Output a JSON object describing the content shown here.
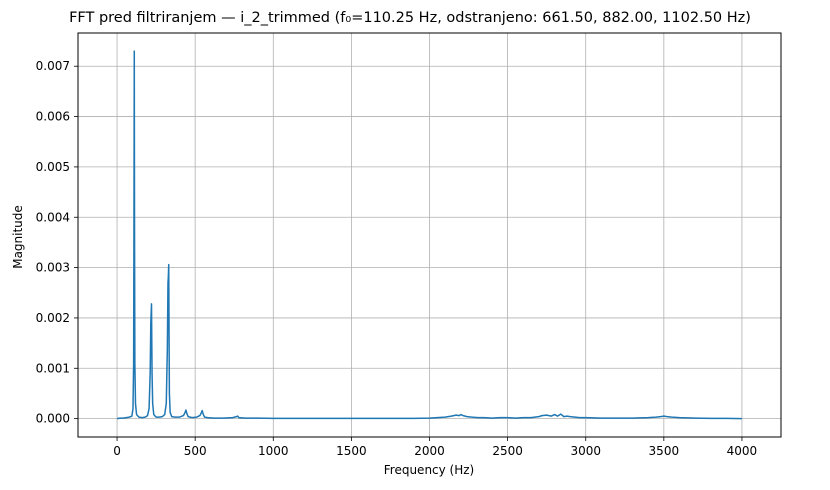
{
  "chart_data": {
    "type": "line",
    "title": "FFT pred filtriranjem — i_2_trimmed (f₀=110.25 Hz, odstranjeno: 661.50, 882.00, 1102.50 Hz)",
    "xlabel": "Frequency (Hz)",
    "ylabel": "Magnitude",
    "xlim": [
      -250,
      4250
    ],
    "ylim": [
      -0.000365,
      0.00766
    ],
    "xticks": [
      0,
      500,
      1000,
      1500,
      2000,
      2500,
      3000,
      3500,
      4000
    ],
    "xtick_labels": [
      "0",
      "500",
      "1000",
      "1500",
      "2000",
      "2500",
      "3000",
      "3500",
      "4000"
    ],
    "yticks": [
      0.0,
      0.001,
      0.002,
      0.003,
      0.004,
      0.005,
      0.006,
      0.007
    ],
    "ytick_labels": [
      "0.000",
      "0.001",
      "0.002",
      "0.003",
      "0.004",
      "0.005",
      "0.006",
      "0.007"
    ],
    "grid": true,
    "series": [
      {
        "color": "#1f77b4",
        "x": [
          0,
          20,
          40,
          60,
          80,
          95,
          102,
          106,
          108,
          110.25,
          112,
          114,
          118,
          125,
          140,
          160,
          180,
          195,
          205,
          212,
          216,
          220.5,
          224,
          228,
          235,
          250,
          270,
          290,
          305,
          315,
          322,
          326,
          328,
          330.75,
          333,
          335,
          340,
          350,
          370,
          400,
          425,
          435,
          441,
          447,
          455,
          480,
          510,
          530,
          540,
          545,
          551,
          560,
          580,
          620,
          680,
          740,
          765,
          772,
          780,
          820,
          900,
          1000,
          1100,
          1200,
          1300,
          1400,
          1500,
          1600,
          1700,
          1800,
          1900,
          2000,
          2050,
          2100,
          2140,
          2170,
          2190,
          2200,
          2215,
          2240,
          2270,
          2310,
          2350,
          2400,
          2450,
          2500,
          2550,
          2600,
          2650,
          2700,
          2720,
          2750,
          2780,
          2800,
          2820,
          2840,
          2860,
          2880,
          2900,
          2930,
          2960,
          3000,
          3100,
          3200,
          3300,
          3400,
          3450,
          3480,
          3500,
          3520,
          3550,
          3600,
          3700,
          3800,
          3900,
          4000
        ],
        "y": [
          0.0,
          1e-05,
          1e-05,
          2e-05,
          3e-05,
          5e-05,
          0.0002,
          0.0011,
          0.0036,
          0.0073,
          0.0036,
          0.0011,
          0.0003,
          8e-05,
          3e-05,
          2e-05,
          3e-05,
          6e-05,
          0.0002,
          0.0009,
          0.0019,
          0.00228,
          0.0009,
          0.0003,
          8e-05,
          3e-05,
          3e-05,
          4e-05,
          8e-05,
          0.0003,
          0.0014,
          0.0027,
          0.0028,
          0.00306,
          0.0016,
          0.0005,
          0.00012,
          4e-05,
          3e-05,
          3e-05,
          6e-05,
          0.00012,
          0.00017,
          0.0001,
          4e-05,
          2e-05,
          3e-05,
          6e-05,
          0.00012,
          0.00016,
          9e-05,
          3e-05,
          2e-05,
          1e-05,
          1e-05,
          2e-05,
          4e-05,
          5e-05,
          2e-05,
          1e-05,
          1e-05,
          5e-06,
          5e-06,
          5e-06,
          5e-06,
          5e-06,
          5e-06,
          5e-06,
          5e-06,
          5e-06,
          5e-06,
          1e-05,
          2e-05,
          3e-05,
          5e-05,
          7e-05,
          6e-05,
          8e-05,
          6e-05,
          4e-05,
          3e-05,
          2e-05,
          2e-05,
          1e-05,
          2e-05,
          2e-05,
          1e-05,
          2e-05,
          2e-05,
          4e-05,
          6e-05,
          7e-05,
          5e-05,
          8e-05,
          5e-05,
          9e-05,
          4e-05,
          5e-05,
          4e-05,
          3e-05,
          2e-05,
          2e-05,
          1e-05,
          1e-05,
          1e-05,
          2e-05,
          3e-05,
          4e-05,
          5e-05,
          4e-05,
          3e-05,
          2e-05,
          1e-05,
          5e-06,
          5e-06,
          0.0
        ]
      }
    ]
  }
}
